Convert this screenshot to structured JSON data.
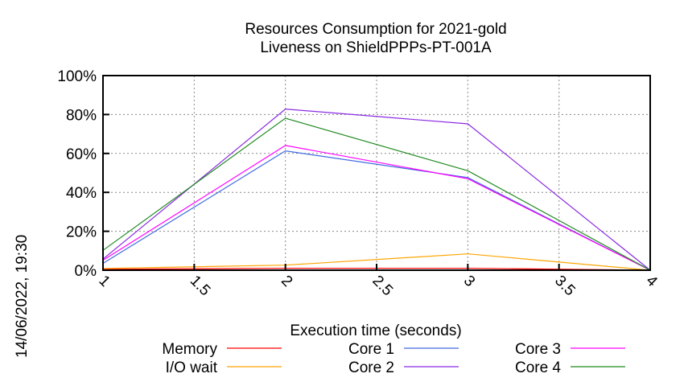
{
  "chart_data": {
    "type": "line",
    "title": "Resources Consumption for 2021-gold",
    "subtitle": "Liveness on ShieldPPPs-PT-001A",
    "xlabel": "Execution time (seconds)",
    "ylabel": "",
    "side_label": "14/06/2022, 19:30",
    "xlim": [
      1,
      4
    ],
    "ylim": [
      0,
      100
    ],
    "grid": true,
    "legend_position": "bottom",
    "x": [
      1,
      2,
      3,
      4
    ],
    "x_ticks": [
      "1",
      "1.5",
      "2",
      "2.5",
      "3",
      "3.5",
      "4"
    ],
    "x_tick_values": [
      1,
      1.5,
      2,
      2.5,
      3,
      3.5,
      4
    ],
    "y_ticks": [
      "0%",
      "20%",
      "40%",
      "60%",
      "80%",
      "100%"
    ],
    "y_tick_values": [
      0,
      20,
      40,
      60,
      80,
      100
    ],
    "series": [
      {
        "name": "Memory",
        "color": "#ff0000",
        "values": [
          0.5,
          1.0,
          1.0,
          0
        ]
      },
      {
        "name": "I/O wait",
        "color": "#ffa500",
        "values": [
          0.9,
          2.6,
          8.4,
          0
        ]
      },
      {
        "name": "Core 1",
        "color": "#4169e1",
        "values": [
          3.5,
          61.3,
          47.6,
          0
        ]
      },
      {
        "name": "Core 2",
        "color": "#8a2be2",
        "values": [
          5.7,
          82.8,
          75.2,
          0
        ]
      },
      {
        "name": "Core 3",
        "color": "#ff00ff",
        "values": [
          5.1,
          64.1,
          47.0,
          0
        ]
      },
      {
        "name": "Core 4",
        "color": "#228b22",
        "values": [
          10.2,
          78.1,
          51.1,
          0
        ]
      }
    ]
  }
}
